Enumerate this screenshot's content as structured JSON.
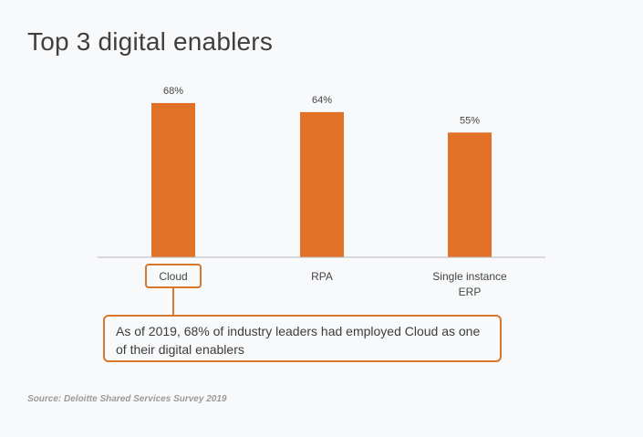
{
  "title": "Top 3 digital enablers",
  "chart_data": {
    "type": "bar",
    "categories": [
      "Cloud",
      "RPA",
      "Single instance ERP"
    ],
    "category_lines": [
      [
        "Cloud"
      ],
      [
        "RPA"
      ],
      [
        "Single instance",
        "ERP"
      ]
    ],
    "values": [
      68,
      64,
      55
    ],
    "value_labels": [
      "68%",
      "64%",
      "55%"
    ],
    "ylim": [
      0,
      70
    ],
    "grid": false,
    "bar_color": "#e07127",
    "highlight_category": "Cloud",
    "highlight_color": "#d8762c"
  },
  "callout": {
    "text": "As of 2019, 68% of industry leaders had employed Cloud as one of their digital enablers"
  },
  "source": "Source: Deloitte Shared Services Survey 2019"
}
